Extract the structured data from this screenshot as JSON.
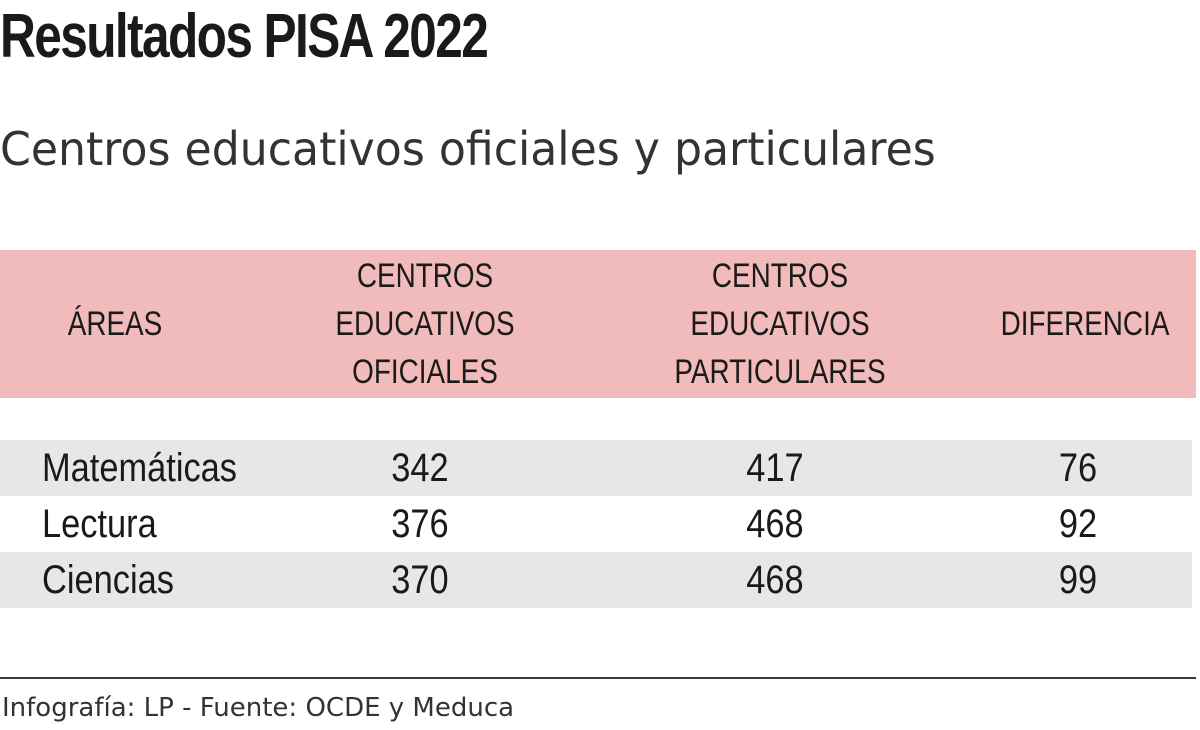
{
  "chart_data": {
    "type": "table",
    "title": "Resultados PISA 2022",
    "subtitle": "Centros educativos oficiales y particulares",
    "columns": [
      "ÁREAS",
      "CENTROS\nEDUCATIVOS\nOFICIALES",
      "CENTROS\nEDUCATIVOS\nPARTICULARES",
      "DIFERENCIA"
    ],
    "rows": [
      {
        "area": "Matemáticas",
        "oficiales": "342",
        "particulares": "417",
        "diferencia": "76"
      },
      {
        "area": "Lectura",
        "oficiales": "376",
        "particulares": "468",
        "diferencia": "92"
      },
      {
        "area": "Ciencias",
        "oficiales": "370",
        "particulares": "468",
        "diferencia": "99"
      }
    ],
    "source": "Infografía: LP - Fuente: OCDE y Meduca"
  },
  "colors": {
    "header_background": "#f2bbbb",
    "shaded_row": "#e6e7e8",
    "text": "#1a1a1a"
  }
}
